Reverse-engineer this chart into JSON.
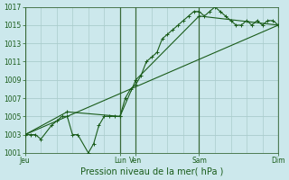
{
  "bg_color": "#cce8ec",
  "grid_color": "#aacccc",
  "line_color": "#1a5c1a",
  "vline_color": "#3a6a3a",
  "ylim": [
    1001,
    1017
  ],
  "yticks": [
    1001,
    1003,
    1005,
    1007,
    1009,
    1011,
    1013,
    1015,
    1017
  ],
  "xlim": [
    0,
    48
  ],
  "day_labels": [
    "Jeu",
    "Lun",
    "Ven",
    "Sam",
    "Dim"
  ],
  "day_positions": [
    0,
    18,
    21,
    33,
    48
  ],
  "series1_x": [
    0,
    1,
    2,
    3,
    5,
    6,
    7,
    8,
    9,
    10,
    12,
    13,
    14,
    15,
    16,
    17,
    18,
    19,
    20,
    21,
    22,
    23,
    24,
    25,
    26,
    27,
    28,
    29,
    30,
    31,
    32,
    33,
    34,
    35,
    36,
    37,
    38,
    39,
    40,
    41,
    42,
    43,
    44,
    45,
    46,
    47,
    48
  ],
  "series1_y": [
    1003,
    1003,
    1003,
    1002.5,
    1004,
    1004.5,
    1005,
    1005,
    1003,
    1003,
    1001,
    1002,
    1004,
    1005,
    1005,
    1005,
    1005,
    1007,
    1008,
    1008.5,
    1009.5,
    1011,
    1011.5,
    1012,
    1013.5,
    1014,
    1014.5,
    1015,
    1015.5,
    1016,
    1016.5,
    1016.5,
    1016,
    1016.5,
    1017,
    1016.5,
    1016,
    1015.5,
    1015,
    1015,
    1015.5,
    1015,
    1015.5,
    1015,
    1015.5,
    1015.5,
    1015
  ],
  "series2_x": [
    0,
    8,
    18,
    21,
    33,
    48
  ],
  "series2_y": [
    1003,
    1005.5,
    1005,
    1009,
    1016,
    1015
  ],
  "trend_x": [
    0,
    48
  ],
  "trend_y": [
    1003,
    1015
  ],
  "xlabel": "Pression niveau de la mer( hPa )"
}
